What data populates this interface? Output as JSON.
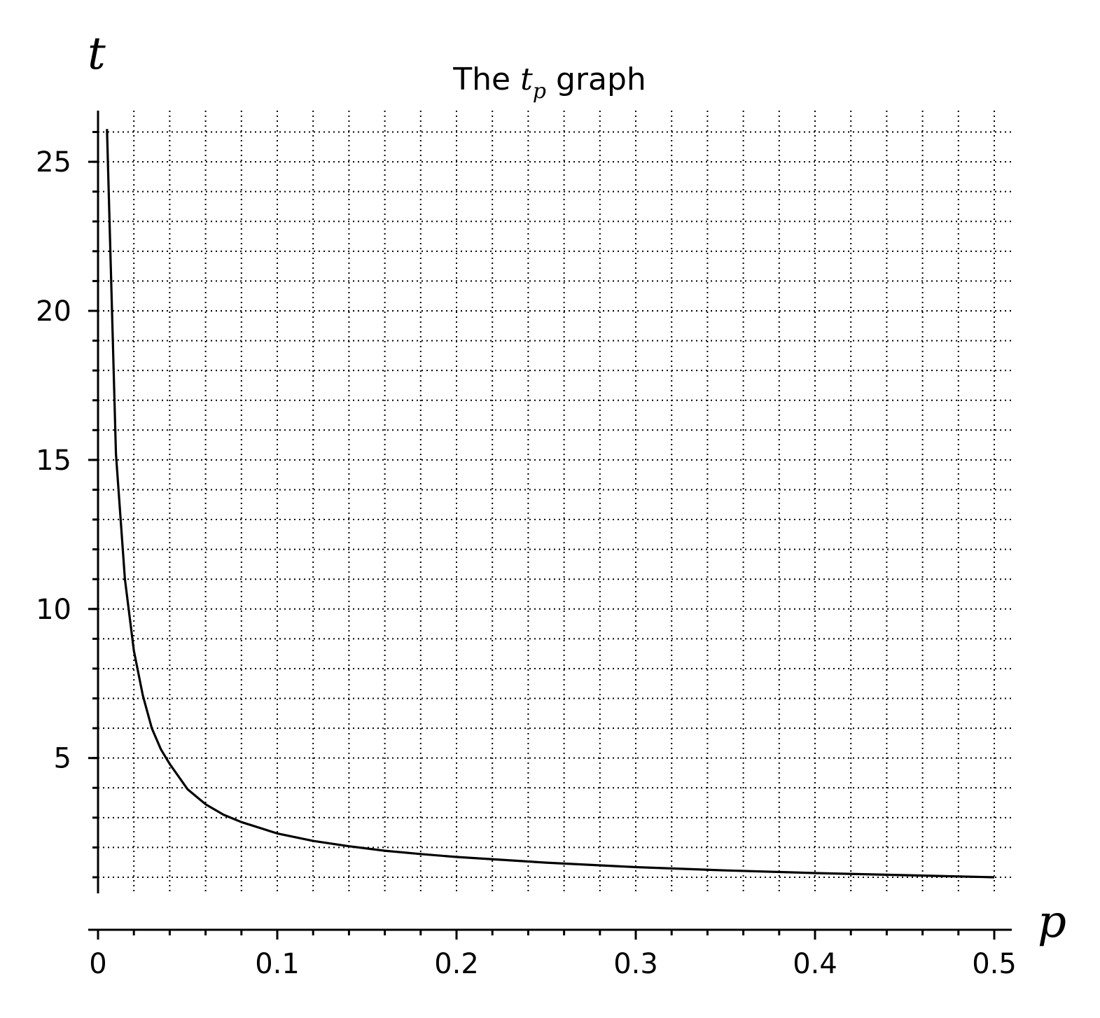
{
  "chart_data": {
    "type": "line",
    "title": "The t_p graph",
    "title_parts": {
      "prefix": "The ",
      "var": "t",
      "sub": "p",
      "suffix": " graph"
    },
    "xlabel": "p",
    "ylabel": "t",
    "xlim": [
      0,
      0.5
    ],
    "ylim": [
      1,
      26.2
    ],
    "xticks": [
      0,
      0.1,
      0.2,
      0.3,
      0.4,
      0.5
    ],
    "xtick_labels": [
      "0",
      "0.1",
      "0.2",
      "0.3",
      "0.4",
      "0.5"
    ],
    "yticks": [
      5,
      10,
      15,
      20,
      25
    ],
    "ytick_labels": [
      "5",
      "10",
      "15",
      "20",
      "25"
    ],
    "x_minor_step": 0.02,
    "y_minor_step": 1,
    "grid": true,
    "grid_style": "dotted",
    "line_color": "#000000",
    "series": [
      {
        "x": [
          0.005,
          0.01,
          0.015,
          0.02,
          0.025,
          0.03,
          0.035,
          0.04,
          0.05,
          0.06,
          0.07,
          0.08,
          0.1,
          0.12,
          0.14,
          0.16,
          0.18,
          0.2,
          0.25,
          0.3,
          0.35,
          0.4,
          0.45,
          0.5
        ],
        "y": [
          26.1,
          15.2,
          11.0,
          8.6,
          7.1,
          6.0,
          5.3,
          4.8,
          3.95,
          3.45,
          3.1,
          2.85,
          2.47,
          2.22,
          2.04,
          1.89,
          1.78,
          1.68,
          1.49,
          1.34,
          1.23,
          1.14,
          1.07,
          1.0
        ]
      }
    ]
  }
}
